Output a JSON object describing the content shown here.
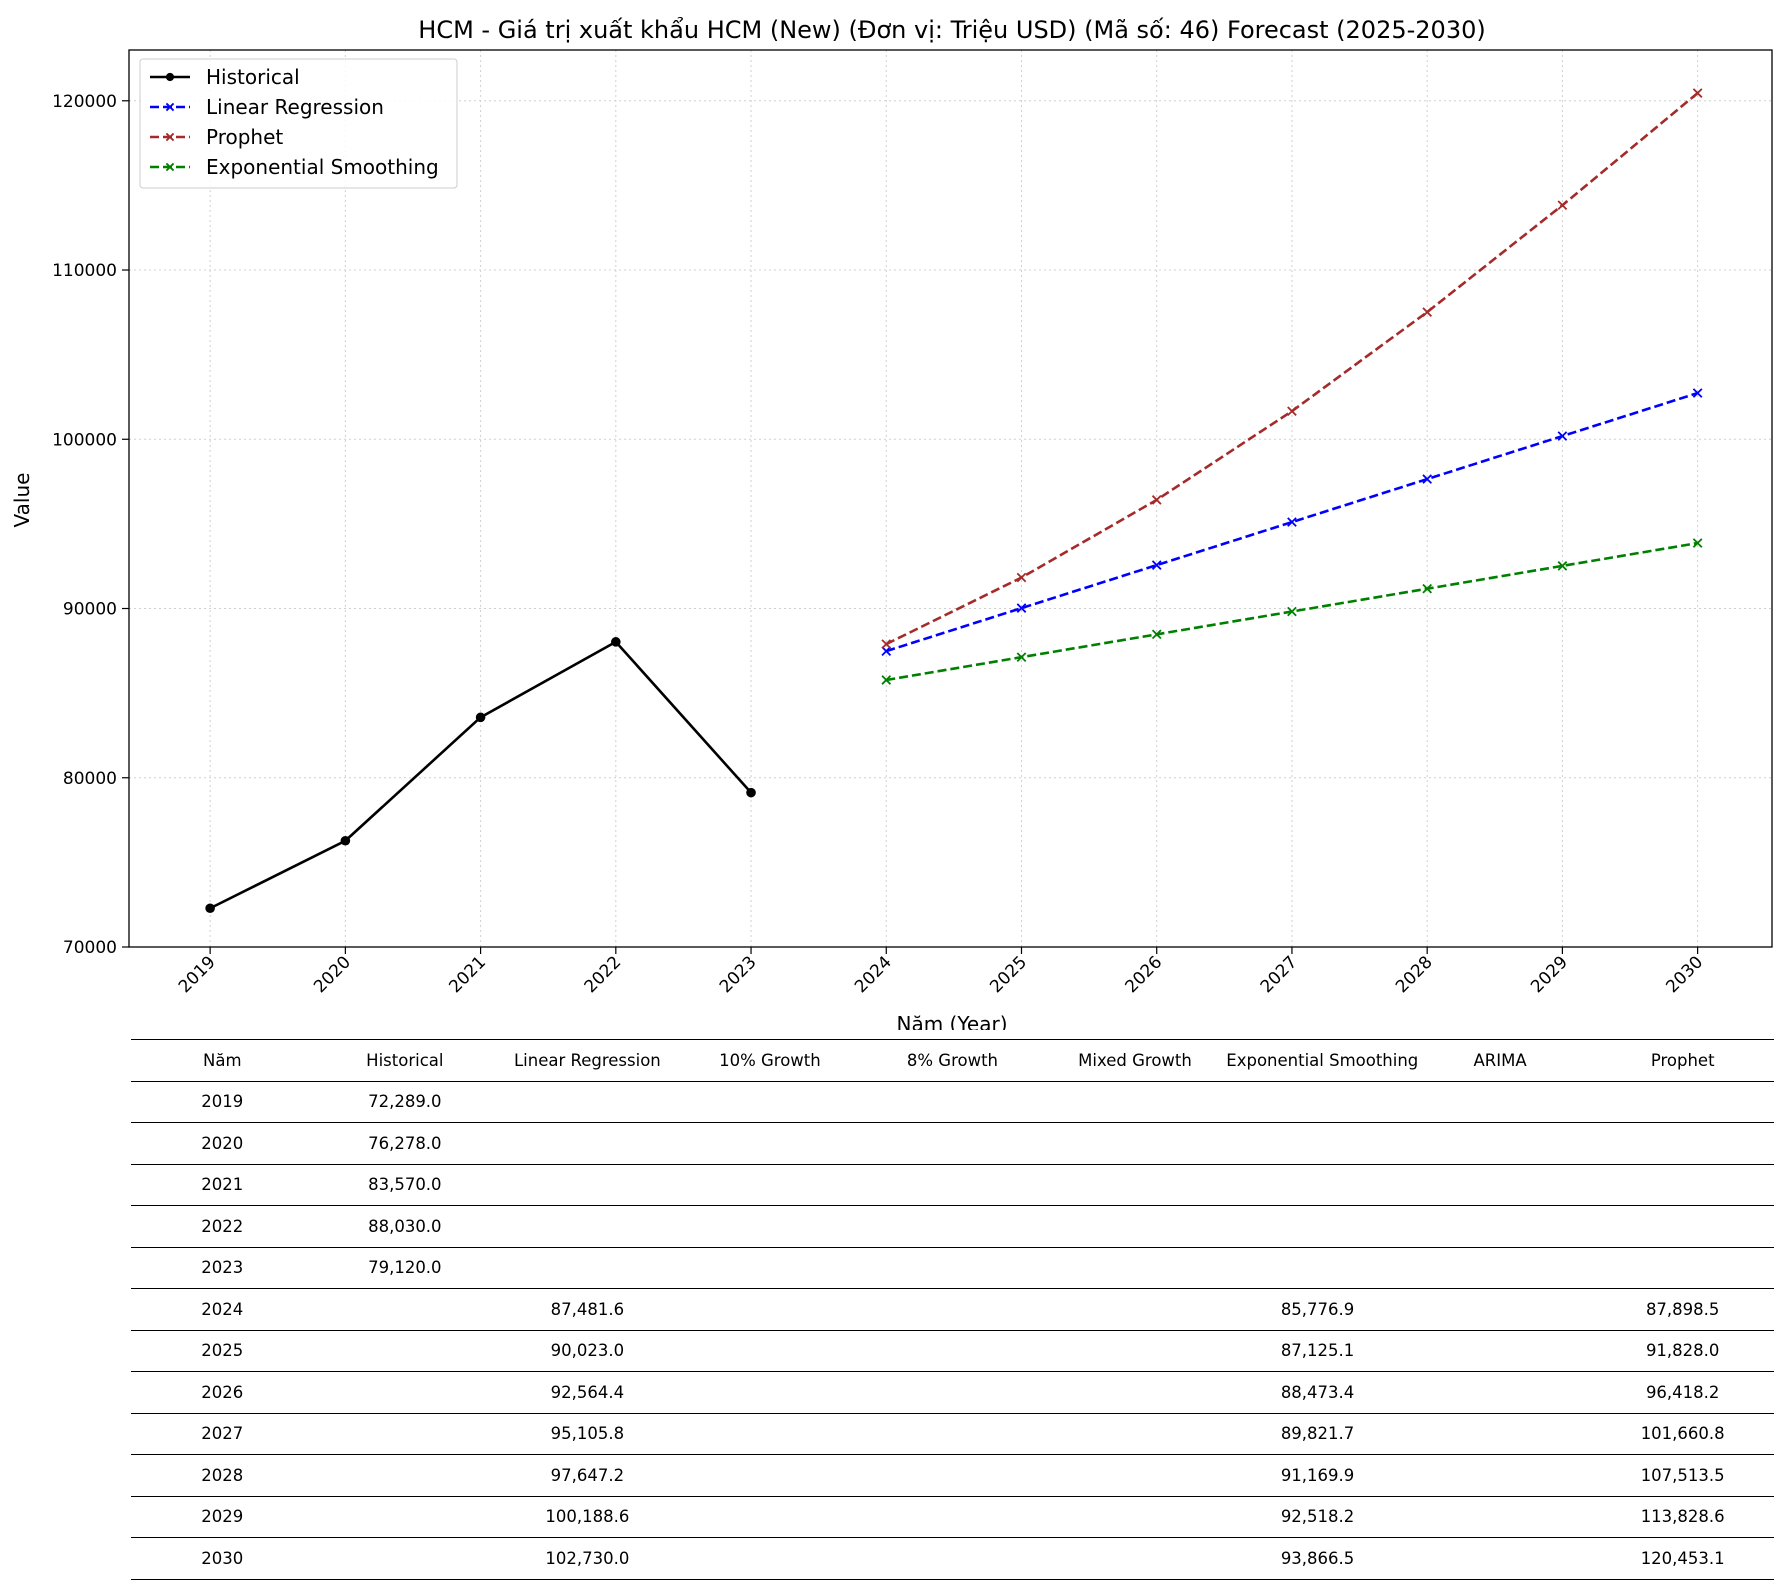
{
  "chart_data": {
    "type": "line",
    "title": "HCM - Giá trị xuất khẩu HCM (New) (Đơn vị: Triệu USD) (Mã số: 46) Forecast (2025-2030)",
    "xlabel": "Năm (Year)",
    "ylabel": "Value",
    "x": [
      2019,
      2020,
      2021,
      2022,
      2023,
      2024,
      2025,
      2026,
      2027,
      2028,
      2029,
      2030
    ],
    "x_tick_labels": [
      "2019",
      "2020",
      "2021",
      "2022",
      "2023",
      "2024",
      "2025",
      "2026",
      "2027",
      "2028",
      "2029",
      "2030"
    ],
    "ylim": [
      70000,
      123000
    ],
    "y_ticks": [
      70000,
      80000,
      90000,
      100000,
      110000,
      120000
    ],
    "y_tick_labels": [
      "70000",
      "80000",
      "90000",
      "100000",
      "110000",
      "120000"
    ],
    "grid": true,
    "legend_position": "top-left",
    "series": [
      {
        "name": "Historical",
        "color": "#000000",
        "style": "solid",
        "marker": "circle",
        "x": [
          2019,
          2020,
          2021,
          2022,
          2023
        ],
        "values": [
          72289.0,
          76278.0,
          83570.0,
          88030.0,
          79120.0
        ]
      },
      {
        "name": "Linear Regression",
        "color": "#0000ff",
        "style": "dashed",
        "marker": "x",
        "x": [
          2024,
          2025,
          2026,
          2027,
          2028,
          2029,
          2030
        ],
        "values": [
          87481.6,
          90023.0,
          92564.4,
          95105.8,
          97647.2,
          100188.6,
          102730.0
        ]
      },
      {
        "name": "Prophet",
        "color": "#a52a2a",
        "style": "dashed",
        "marker": "x",
        "x": [
          2024,
          2025,
          2026,
          2027,
          2028,
          2029,
          2030
        ],
        "values": [
          87898.5,
          91828.0,
          96418.2,
          101660.8,
          107513.5,
          113828.6,
          120453.1
        ]
      },
      {
        "name": "Exponential Smoothing",
        "color": "#008000",
        "style": "dashed",
        "marker": "x",
        "x": [
          2024,
          2025,
          2026,
          2027,
          2028,
          2029,
          2030
        ],
        "values": [
          85776.9,
          87125.1,
          88473.4,
          89821.7,
          91169.9,
          92518.2,
          93866.5
        ]
      }
    ]
  },
  "table": {
    "headers": [
      "Năm",
      "Historical",
      "Linear Regression",
      "10% Growth",
      "8% Growth",
      "Mixed Growth",
      "Exponential Smoothing",
      "ARIMA",
      "Prophet"
    ],
    "rows": [
      [
        "2019",
        "72,289.0",
        "",
        "",
        "",
        "",
        "",
        "",
        ""
      ],
      [
        "2020",
        "76,278.0",
        "",
        "",
        "",
        "",
        "",
        "",
        ""
      ],
      [
        "2021",
        "83,570.0",
        "",
        "",
        "",
        "",
        "",
        "",
        ""
      ],
      [
        "2022",
        "88,030.0",
        "",
        "",
        "",
        "",
        "",
        "",
        ""
      ],
      [
        "2023",
        "79,120.0",
        "",
        "",
        "",
        "",
        "",
        "",
        ""
      ],
      [
        "2024",
        "",
        "87,481.6",
        "",
        "",
        "",
        "85,776.9",
        "",
        "87,898.5"
      ],
      [
        "2025",
        "",
        "90,023.0",
        "",
        "",
        "",
        "87,125.1",
        "",
        "91,828.0"
      ],
      [
        "2026",
        "",
        "92,564.4",
        "",
        "",
        "",
        "88,473.4",
        "",
        "96,418.2"
      ],
      [
        "2027",
        "",
        "95,105.8",
        "",
        "",
        "",
        "89,821.7",
        "",
        "101,660.8"
      ],
      [
        "2028",
        "",
        "97,647.2",
        "",
        "",
        "",
        "91,169.9",
        "",
        "107,513.5"
      ],
      [
        "2029",
        "",
        "100,188.6",
        "",
        "",
        "",
        "92,518.2",
        "",
        "113,828.6"
      ],
      [
        "2030",
        "",
        "102,730.0",
        "",
        "",
        "",
        "93,866.5",
        "",
        "120,453.1"
      ]
    ]
  }
}
